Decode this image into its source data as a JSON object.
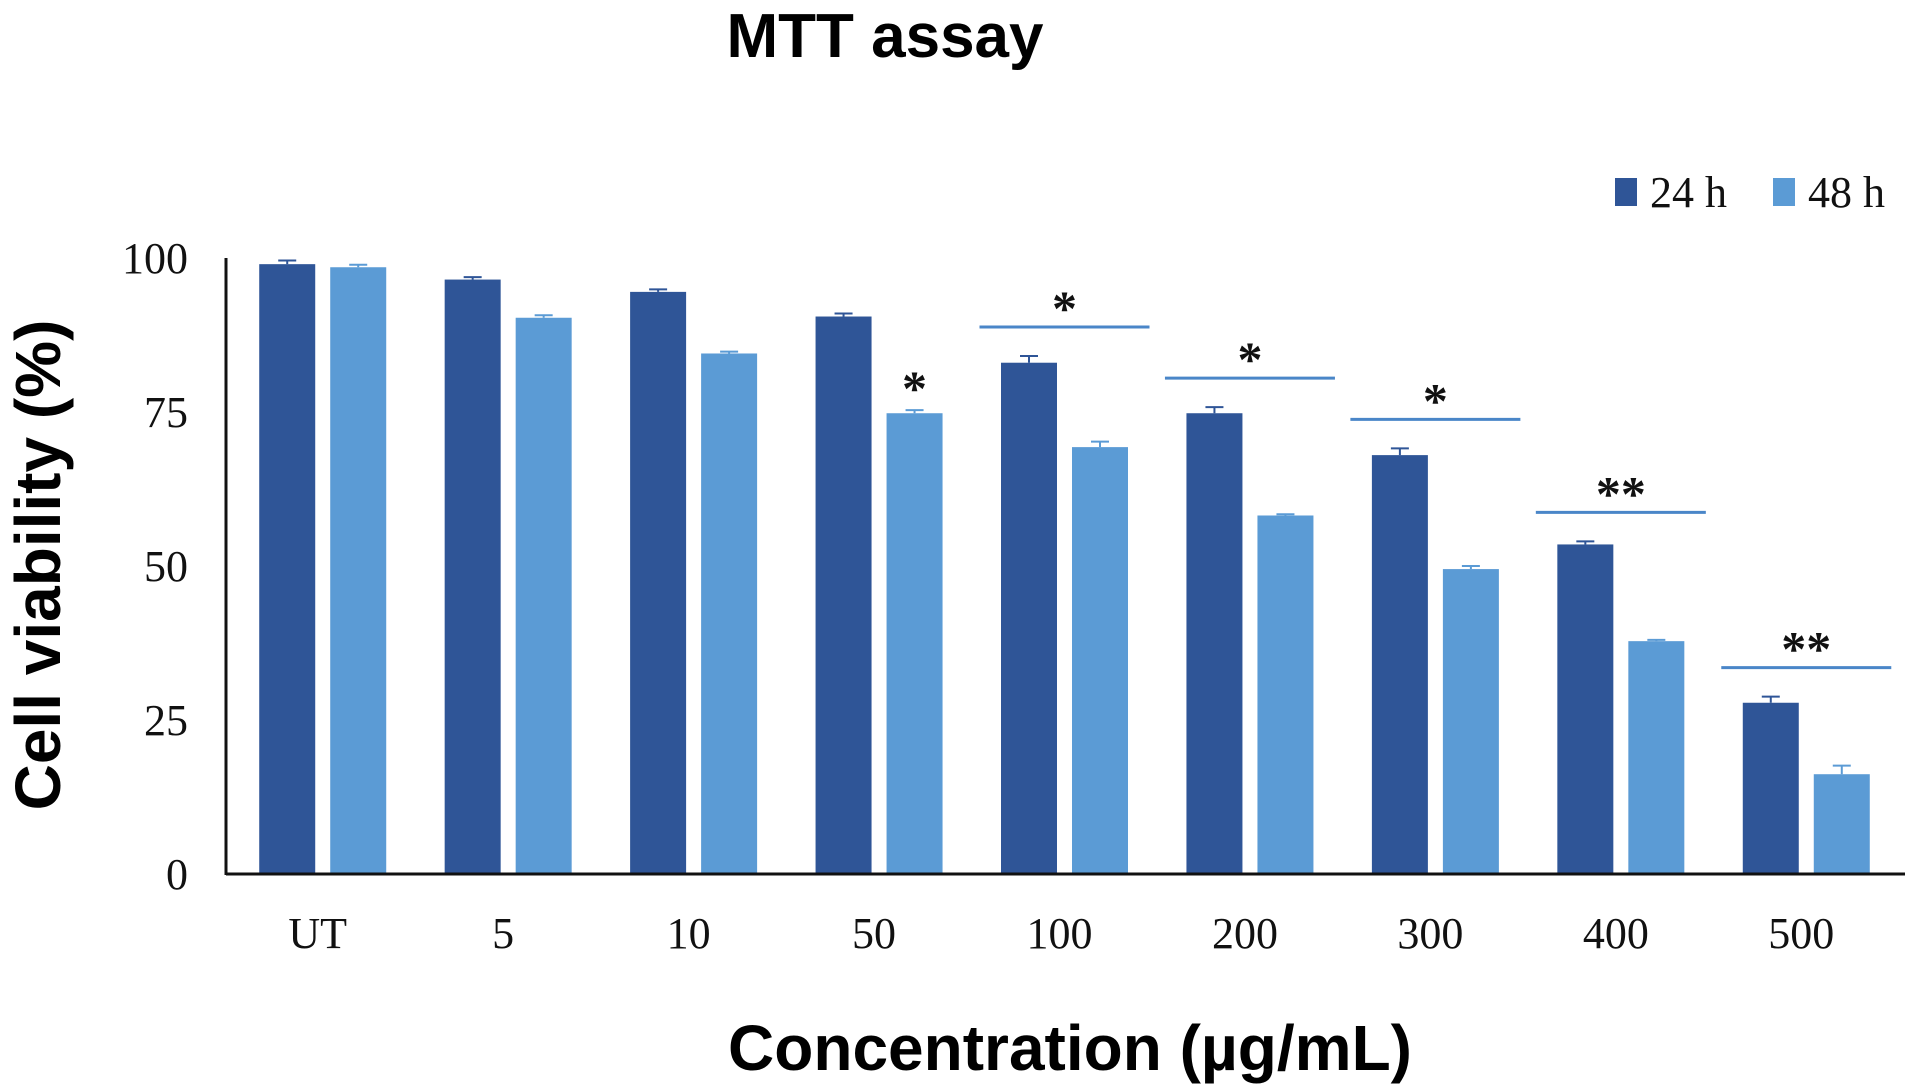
{
  "chart_data": {
    "type": "bar",
    "title": "MTT assay",
    "xlabel": "Concentration (µg/mL)",
    "ylabel": "Cell viability (%)",
    "ylim": [
      0,
      100
    ],
    "yticks": [
      "0",
      "25",
      "50",
      "75",
      "100"
    ],
    "categories": [
      "UT",
      "5",
      "10",
      "50",
      "100",
      "200",
      "300",
      "400",
      "500"
    ],
    "series": [
      {
        "name": "24 h",
        "color": "#2f5597",
        "values": [
          99,
          96.5,
          94.5,
          90.5,
          83,
          74.8,
          68,
          53.5,
          27.8
        ],
        "errors": [
          0.6,
          0.4,
          0.4,
          0.5,
          1.1,
          1.0,
          1.1,
          0.5,
          1.0
        ]
      },
      {
        "name": "48 h",
        "color": "#5b9bd5",
        "values": [
          98.5,
          90.3,
          84.5,
          74.8,
          69.3,
          58.2,
          49.5,
          37.8,
          16.2
        ],
        "errors": [
          0.4,
          0.4,
          0.3,
          0.5,
          0.9,
          0.2,
          0.5,
          0.2,
          1.4
        ]
      }
    ],
    "significance": [
      {
        "category": "50",
        "label": "*",
        "span": "single"
      },
      {
        "category": "100",
        "label": "*",
        "span": "pair"
      },
      {
        "category": "200",
        "label": "*",
        "span": "pair"
      },
      {
        "category": "300",
        "label": "*",
        "span": "pair"
      },
      {
        "category": "400",
        "label": "**",
        "span": "pair"
      },
      {
        "category": "500",
        "label": "**",
        "span": "pair"
      }
    ],
    "legend_position": "top-right"
  }
}
